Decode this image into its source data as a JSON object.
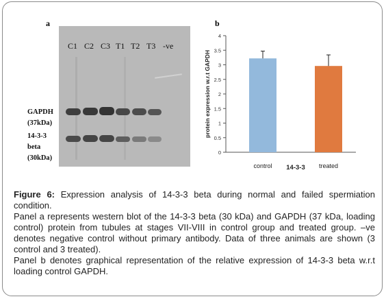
{
  "panel_a": {
    "label": "a",
    "lanes": [
      "C1",
      "C2",
      "C3",
      "T1",
      "T2",
      "T3",
      "-ve"
    ],
    "band_labels": {
      "gapdh_name": "GAPDH",
      "gapdh_size": "(37kDa)",
      "target_name": "14-3-3",
      "target_name2": "beta",
      "target_size": "(30kDa)"
    }
  },
  "panel_b": {
    "label": "b"
  },
  "chart_data": {
    "type": "bar",
    "categories": [
      "control",
      "treated"
    ],
    "values": [
      3.22,
      2.96
    ],
    "errors": [
      0.25,
      0.38
    ],
    "bar_colors": [
      "#93b9dc",
      "#e07a3f"
    ],
    "xlabel": "14-3-3",
    "ylabel": "protein expression w.r.t GAPDH",
    "ylim": [
      0,
      4
    ],
    "yticks": [
      "0",
      "0.5",
      "1",
      "1.5",
      "2",
      "2.5",
      "3",
      "3.5",
      "4"
    ],
    "grid": false
  },
  "caption": {
    "figure_label": "Figure 6:",
    "title": " Expression analysis of 14-3-3 beta during normal and failed spermiation condition.",
    "para_a": "Panel a represents western blot of the 14-3-3 beta (30 kDa) and GAPDH (37 kDa, loading control) protein from tubules at stages VII-VIII in control group and treated group. –ve denotes negative control without primary antibody. Data of three animals are shown (3 control and 3 treated).",
    "para_b": "Panel b denotes graphical representation of the relative expression of 14-3-3 beta w.r.t loading control GAPDH."
  }
}
